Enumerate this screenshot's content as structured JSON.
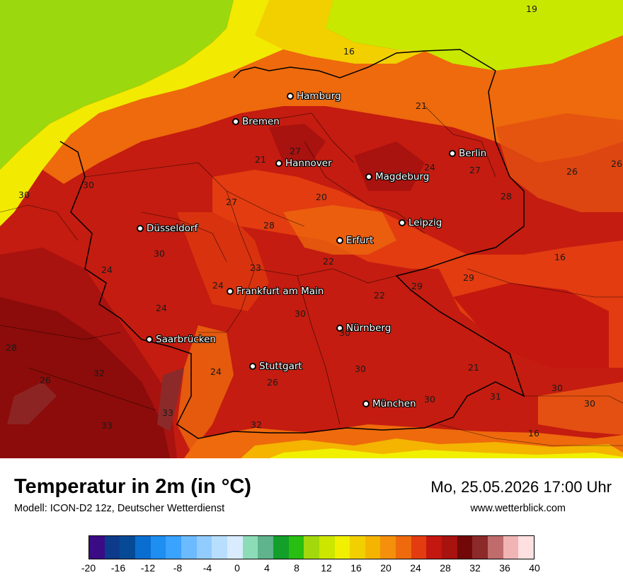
{
  "map": {
    "cities": [
      {
        "name": "Hamburg"
      },
      {
        "name": "Bremen"
      },
      {
        "name": "Hannover"
      },
      {
        "name": "Berlin"
      },
      {
        "name": "Magdeburg"
      },
      {
        "name": "Düsseldorf"
      },
      {
        "name": "Leipzig"
      },
      {
        "name": "Erfurt"
      },
      {
        "name": "Frankfurt am Main"
      },
      {
        "name": "Nürnberg"
      },
      {
        "name": "Saarbrücken"
      },
      {
        "name": "Stuttgart"
      },
      {
        "name": "München"
      }
    ],
    "values": [
      "19",
      "16",
      "21",
      "27",
      "21",
      "24",
      "27",
      "26",
      "26",
      "30",
      "30",
      "20",
      "27",
      "28",
      "22",
      "23",
      "30",
      "24",
      "22",
      "29",
      "29",
      "16",
      "24",
      "24",
      "30",
      "30",
      "28",
      "32",
      "26",
      "33",
      "33",
      "24",
      "26",
      "30",
      "32",
      "30",
      "31",
      "30",
      "30",
      "16",
      "21",
      "28"
    ]
  },
  "footer": {
    "title": "Temperatur in 2m (in °C)",
    "model": "Modell: ICON-D2 12z, Deutscher Wetterdienst",
    "datetime": "Mo, 25.05.2026 17:00 Uhr",
    "website": "www.wetterblick.com"
  },
  "legend": {
    "colors": [
      "#3a0b85",
      "#0d3a8a",
      "#064a96",
      "#0a6ed1",
      "#1e8ef0",
      "#3aa2ff",
      "#6cbaff",
      "#92ccff",
      "#b8defe",
      "#d8ecfd",
      "#8ddcb8",
      "#5fb48d",
      "#12a02a",
      "#28be12",
      "#a3d80c",
      "#cce600",
      "#f0f000",
      "#f2d000",
      "#f4b400",
      "#f4900c",
      "#ee6a0c",
      "#e23c10",
      "#c4170f",
      "#a8120f",
      "#720808",
      "#8c2a2a",
      "#c06c6c",
      "#f0b4b4",
      "#ffe0e0"
    ],
    "ticks": [
      "-20",
      "-16",
      "-12",
      "-8",
      "-4",
      "0",
      "4",
      "8",
      "12",
      "16",
      "20",
      "24",
      "28",
      "32",
      "36",
      "40"
    ]
  }
}
